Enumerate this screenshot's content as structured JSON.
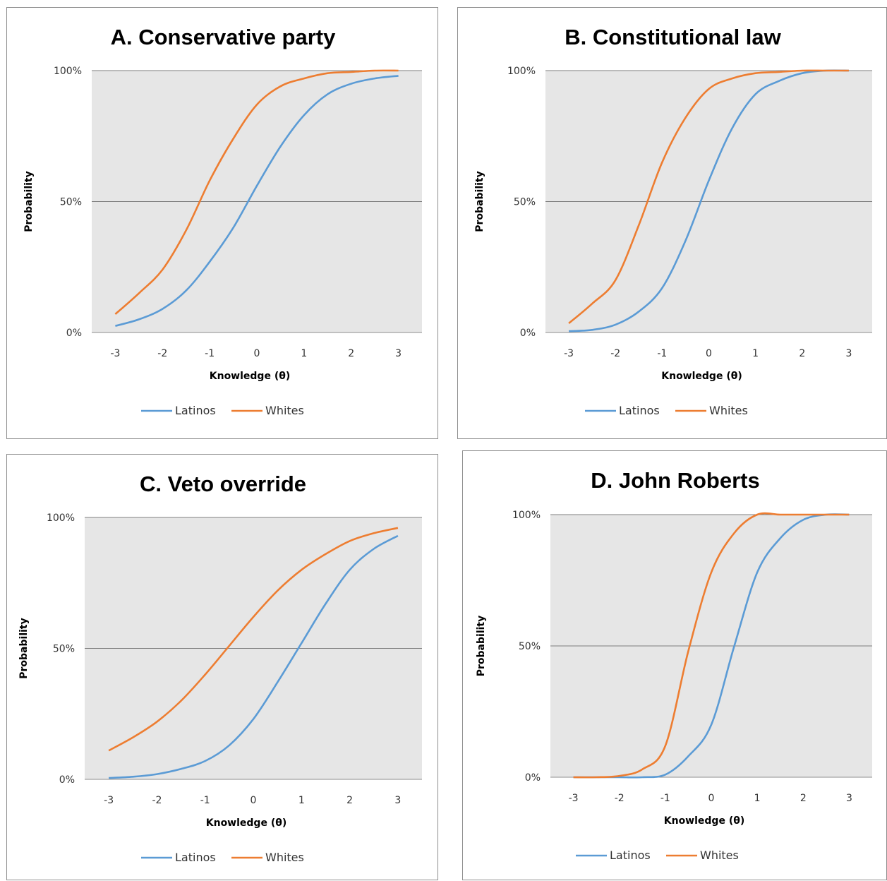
{
  "chart_data": [
    {
      "type": "line",
      "title": "A. Conservative party",
      "xlabel": "Knowledge (θ)",
      "ylabel": "Probability",
      "x_ticks": [
        "-3",
        "-2",
        "-1",
        "0",
        "1",
        "2",
        "3"
      ],
      "y_ticks": [
        "0%",
        "50%",
        "100%"
      ],
      "xlim": [
        -3,
        3
      ],
      "ylim": [
        0,
        100
      ],
      "grid": "horizontal",
      "legend": "bottom",
      "series": [
        {
          "name": "Latinos",
          "color": "#5b9bd5",
          "x": [
            -3,
            -2.5,
            -2,
            -1.5,
            -1,
            -0.5,
            0,
            0.5,
            1,
            1.5,
            2,
            2.5,
            3
          ],
          "y": [
            2.5,
            5,
            9,
            16,
            27,
            40,
            56,
            71,
            83,
            91,
            95,
            97,
            98
          ]
        },
        {
          "name": "Whites",
          "color": "#ed7d31",
          "x": [
            -3,
            -2.5,
            -2,
            -1.5,
            -1,
            -0.5,
            0,
            0.5,
            1,
            1.5,
            2,
            2.5,
            3
          ],
          "y": [
            7,
            15,
            24,
            39,
            58,
            74,
            87,
            94,
            97,
            99,
            99.5,
            100,
            100
          ]
        }
      ]
    },
    {
      "type": "line",
      "title": "B. Constitutional law",
      "xlabel": "Knowledge (θ)",
      "ylabel": "Probability",
      "x_ticks": [
        "-3",
        "-2",
        "-1",
        "0",
        "1",
        "2",
        "3"
      ],
      "y_ticks": [
        "0%",
        "50%",
        "100%"
      ],
      "xlim": [
        -3,
        3
      ],
      "ylim": [
        0,
        100
      ],
      "grid": "horizontal",
      "legend": "bottom",
      "series": [
        {
          "name": "Latinos",
          "color": "#5b9bd5",
          "x": [
            -3,
            -2.5,
            -2,
            -1.5,
            -1,
            -0.5,
            0,
            0.5,
            1,
            1.5,
            2,
            2.5,
            3
          ],
          "y": [
            0.5,
            1,
            3,
            8,
            17,
            35,
            58,
            78,
            91,
            96,
            99,
            100,
            100
          ]
        },
        {
          "name": "Whites",
          "color": "#ed7d31",
          "x": [
            -3,
            -2.5,
            -2,
            -1.5,
            -1,
            -0.5,
            0,
            0.5,
            1,
            1.5,
            2,
            2.5,
            3
          ],
          "y": [
            3.5,
            11,
            20,
            41,
            65,
            82,
            93,
            97,
            99,
            99.5,
            100,
            100,
            100
          ]
        }
      ]
    },
    {
      "type": "line",
      "title": "C. Veto override",
      "xlabel": "Knowledge (θ)",
      "ylabel": "Probability",
      "x_ticks": [
        "-3",
        "-2",
        "-1",
        "0",
        "1",
        "2",
        "3"
      ],
      "y_ticks": [
        "0%",
        "50%",
        "100%"
      ],
      "xlim": [
        -3,
        3
      ],
      "ylim": [
        0,
        100
      ],
      "grid": "horizontal",
      "legend": "bottom",
      "series": [
        {
          "name": "Latinos",
          "color": "#5b9bd5",
          "x": [
            -3,
            -2.5,
            -2,
            -1.5,
            -1,
            -0.5,
            0,
            0.5,
            1,
            1.5,
            2,
            2.5,
            3
          ],
          "y": [
            0.5,
            1,
            2,
            4,
            7,
            13,
            23,
            37,
            52,
            67,
            80,
            88,
            93
          ]
        },
        {
          "name": "Whites",
          "color": "#ed7d31",
          "x": [
            -3,
            -2.5,
            -2,
            -1.5,
            -1,
            -0.5,
            0,
            0.5,
            1,
            1.5,
            2,
            2.5,
            3
          ],
          "y": [
            11,
            16,
            22,
            30,
            40,
            51,
            62,
            72,
            80,
            86,
            91,
            94,
            96
          ]
        }
      ]
    },
    {
      "type": "line",
      "title": "D. John Roberts",
      "xlabel": "Knowledge (θ)",
      "ylabel": "Probability",
      "x_ticks": [
        "-3",
        "-2",
        "-1",
        "0",
        "1",
        "2",
        "3"
      ],
      "y_ticks": [
        "0%",
        "50%",
        "100%"
      ],
      "xlim": [
        -3,
        3
      ],
      "ylim": [
        0,
        100
      ],
      "grid": "horizontal",
      "legend": "bottom",
      "series": [
        {
          "name": "Latinos",
          "color": "#5b9bd5",
          "x": [
            -3,
            -2.5,
            -2,
            -1.5,
            -1,
            -0.5,
            0,
            0.5,
            1,
            1.5,
            2,
            2.5,
            3
          ],
          "y": [
            0,
            0,
            0,
            0,
            1,
            8,
            20,
            50,
            78,
            91,
            98,
            100,
            100
          ]
        },
        {
          "name": "Whites",
          "color": "#ed7d31",
          "x": [
            -3,
            -2.5,
            -2,
            -1.5,
            -1,
            -0.5,
            0,
            0.5,
            1,
            1.5,
            2,
            2.5,
            3
          ],
          "y": [
            0,
            0,
            0.5,
            3,
            12,
            48,
            78,
            93,
            100,
            100,
            100,
            100,
            100
          ]
        }
      ]
    }
  ]
}
